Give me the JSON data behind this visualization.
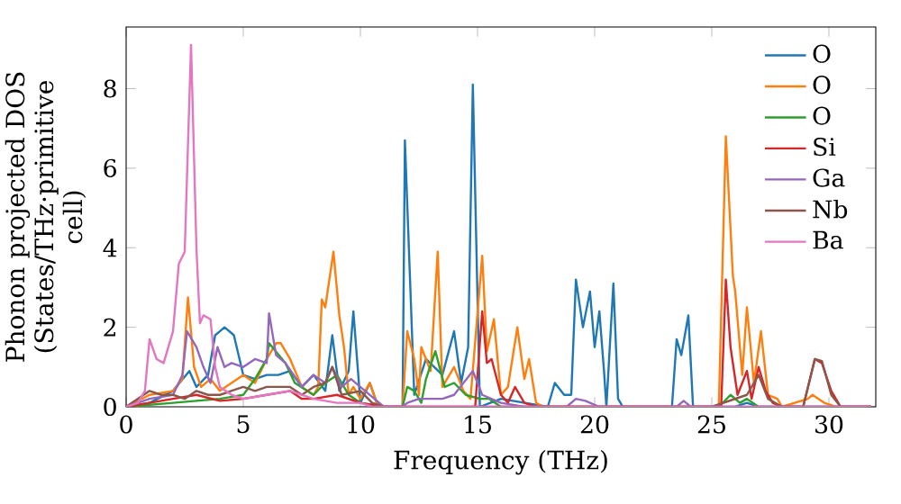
{
  "chart_data": {
    "type": "line",
    "xlabel": "Frequency (THz)",
    "ylabel": "Phonon projected DOS (States/THz·primitive cell)",
    "xlim": [
      0,
      32
    ],
    "ylim": [
      0,
      9.55
    ],
    "xticks": [
      0,
      5,
      10,
      15,
      20,
      25,
      30
    ],
    "yticks": [
      0,
      2,
      4,
      6,
      8
    ],
    "grid": false,
    "legend": "top right",
    "marker": "none",
    "line_style": "solid",
    "series": [
      {
        "name": "O",
        "color": "#1f77b4",
        "x": [
          0,
          1,
          2,
          2.7,
          3,
          3.5,
          3.8,
          4.0,
          4.2,
          4.6,
          5,
          5.5,
          6,
          6.5,
          7,
          7.5,
          8,
          8.5,
          8.8,
          9.1,
          9.5,
          9.7,
          10,
          10.4,
          10.7,
          11,
          11.8,
          11.9,
          12.3,
          12.8,
          13.5,
          14,
          14.3,
          14.6,
          14.8,
          15.1,
          16,
          18,
          18.3,
          18.7,
          19,
          19.2,
          19.5,
          19.8,
          20,
          20.2,
          20.4,
          20.5,
          20.8,
          21,
          21.2,
          23.3,
          23.5,
          23.7,
          24.0,
          24.2,
          26,
          26.5,
          27,
          31.8
        ],
        "values": [
          0,
          0.1,
          0.4,
          0.9,
          0.5,
          0.8,
          1.8,
          1.9,
          2.0,
          1.8,
          0.8,
          0.7,
          0.8,
          0.8,
          0.9,
          0.5,
          0.8,
          0.4,
          1.8,
          0.4,
          0.9,
          2.4,
          0.1,
          0.6,
          0.1,
          0,
          0,
          6.7,
          0.3,
          1.2,
          0.8,
          1.9,
          0.6,
          1.5,
          8.1,
          0,
          0.2,
          0,
          0.6,
          0.3,
          0.3,
          3.2,
          2.0,
          2.9,
          1.5,
          2.4,
          0.9,
          0,
          3.1,
          0.2,
          0,
          0,
          1.7,
          1.3,
          2.3,
          0,
          0,
          0.1,
          0,
          0
        ]
      },
      {
        "name": "O",
        "color": "#ff7f0e",
        "x": [
          0,
          1,
          2,
          2.4,
          2.64,
          2.9,
          3.2,
          3.6,
          4,
          4.5,
          5,
          5.5,
          6,
          6.4,
          6.6,
          7,
          7.5,
          8,
          8.2,
          8.35,
          8.5,
          8.85,
          9.1,
          9.3,
          9.5,
          9.7,
          10,
          10.4,
          10.7,
          11,
          11.8,
          12.0,
          12.3,
          12.5,
          12.6,
          13.0,
          13.3,
          13.5,
          14.0,
          14.4,
          14.7,
          15.2,
          15.4,
          15.7,
          16.0,
          16.3,
          16.7,
          17.0,
          17.2,
          17.5,
          17.8,
          25.3,
          25.6,
          25.9,
          26.0,
          26.3,
          26.5,
          26.8,
          27.1,
          27.4,
          27.8,
          28,
          29.1,
          29.3,
          29.8,
          30.3,
          31.8
        ],
        "values": [
          0,
          0.3,
          0.4,
          0.7,
          2.75,
          1.0,
          0.5,
          0.7,
          0.4,
          0.6,
          0.8,
          0.6,
          1.2,
          1.6,
          1.6,
          1.2,
          0.5,
          0.3,
          0.5,
          2.7,
          2.5,
          3.9,
          2.3,
          1.5,
          0.3,
          0.5,
          0.2,
          0.6,
          0.1,
          0,
          0,
          1.9,
          1.2,
          0.3,
          1.5,
          0.9,
          3.9,
          0.5,
          1.0,
          0.4,
          0.2,
          3.8,
          1.4,
          2.2,
          0.3,
          0.5,
          2.0,
          0.7,
          1.2,
          0.1,
          0,
          0,
          6.8,
          3.3,
          2.9,
          0.8,
          2.5,
          0.6,
          1.9,
          0.3,
          0.2,
          0,
          0.2,
          0.3,
          0.1,
          0,
          0
        ]
      },
      {
        "name": "O",
        "color": "#2ca02c",
        "x": [
          0,
          2,
          3,
          4,
          5,
          5.5,
          6,
          6.1,
          6.8,
          7.2,
          8,
          8.5,
          9,
          9.5,
          10,
          11,
          11.8,
          12.0,
          12.3,
          12.6,
          12.8,
          13.2,
          13.6,
          14.0,
          14.5,
          15.1,
          15.5,
          16,
          25.3,
          25.8,
          26.2,
          26.5,
          27,
          31.8
        ],
        "values": [
          0,
          0.1,
          0.15,
          0.2,
          0.3,
          0.7,
          1.2,
          1.6,
          1.1,
          0.6,
          0.3,
          0.6,
          0.8,
          0.3,
          0.1,
          0,
          0,
          0.5,
          0.4,
          0.1,
          0.7,
          1.4,
          0.5,
          0.6,
          0.3,
          0.2,
          0.2,
          0,
          0,
          0.3,
          0.1,
          0.2,
          0,
          0
        ]
      },
      {
        "name": "Si",
        "color": "#d62728",
        "x": [
          0,
          1,
          2,
          3,
          4,
          5,
          6,
          7,
          7.5,
          8,
          9,
          10,
          11,
          14.9,
          15.2,
          15.4,
          15.6,
          16.0,
          16.3,
          16.6,
          17,
          17.5,
          25.4,
          25.6,
          25.8,
          26.1,
          26.5,
          26.7,
          27.0,
          27.3,
          27.6,
          28,
          28.9,
          29.4,
          29.7,
          30.1,
          30.5,
          31.8
        ],
        "values": [
          0,
          0.1,
          0.2,
          0.3,
          0.15,
          0.2,
          0.3,
          0.4,
          0.2,
          0.2,
          0.3,
          0.1,
          0,
          0,
          2.4,
          1.1,
          1.2,
          0.3,
          0.1,
          0.5,
          0.1,
          0,
          0,
          3.2,
          1.5,
          0.3,
          0.9,
          0.2,
          1.0,
          0.4,
          0.1,
          0,
          0,
          1.2,
          1.1,
          0.4,
          0,
          0
        ]
      },
      {
        "name": "Ga",
        "color": "#9467bd",
        "x": [
          0,
          1,
          2,
          2.4,
          2.6,
          3.0,
          3.3,
          3.6,
          3.9,
          4.2,
          4.5,
          5,
          5.5,
          6.0,
          6.1,
          6.4,
          6.8,
          7.5,
          8,
          8.5,
          8.8,
          9.2,
          9.6,
          10.2,
          10.6,
          11,
          11.8,
          12,
          12.5,
          13.5,
          14,
          14.8,
          15.2,
          16,
          17,
          18.8,
          19.2,
          19.6,
          20.2,
          23.5,
          23.8,
          24.1,
          31.8
        ],
        "values": [
          0,
          0.2,
          0.3,
          0.8,
          1.9,
          1.5,
          1.0,
          0.6,
          1.5,
          1.0,
          1.1,
          1.0,
          1.2,
          1.1,
          2.35,
          1.3,
          1.1,
          0.5,
          0.8,
          0.6,
          1.0,
          0.5,
          0.7,
          0.4,
          0.2,
          0,
          0,
          0.1,
          0.2,
          0.2,
          0.3,
          0.9,
          0.3,
          0.1,
          0,
          0,
          0.2,
          0.15,
          0,
          0,
          0.15,
          0,
          0
        ]
      },
      {
        "name": "Nb",
        "color": "#8c564b",
        "x": [
          0,
          1,
          1.5,
          2,
          2.5,
          3,
          3.5,
          4,
          5,
          5.5,
          6,
          7,
          7.5,
          8,
          8.5,
          8.8,
          9.2,
          10,
          10.5,
          11,
          25,
          26.5,
          27.0,
          27.4,
          28,
          28.9,
          29.4,
          29.7,
          30.1,
          30.5,
          31.8
        ],
        "values": [
          0,
          0.4,
          0.3,
          0.3,
          0.2,
          0.4,
          0.3,
          0.3,
          0.5,
          0.4,
          0.5,
          0.5,
          0.3,
          0.5,
          0.6,
          1.0,
          0.3,
          0.4,
          0.1,
          0,
          0,
          0.3,
          0.8,
          0.2,
          0,
          0,
          1.2,
          1.15,
          0.3,
          0,
          0
        ]
      },
      {
        "name": "Ba",
        "color": "#e377c2",
        "x": [
          0,
          0.5,
          0.8,
          1.0,
          1.3,
          1.6,
          2.0,
          2.25,
          2.5,
          2.77,
          3.0,
          3.15,
          3.3,
          3.6,
          3.8,
          4.0,
          4.5,
          5,
          6,
          7,
          8,
          9,
          10,
          10.5,
          31.8
        ],
        "values": [
          0,
          0.1,
          0.4,
          1.7,
          1.2,
          1.1,
          1.9,
          3.6,
          3.9,
          9.1,
          4.0,
          2.1,
          2.3,
          2.2,
          1.0,
          0.5,
          0.3,
          0.2,
          0.3,
          0.4,
          0.2,
          0.1,
          0.1,
          0,
          0
        ]
      }
    ]
  }
}
